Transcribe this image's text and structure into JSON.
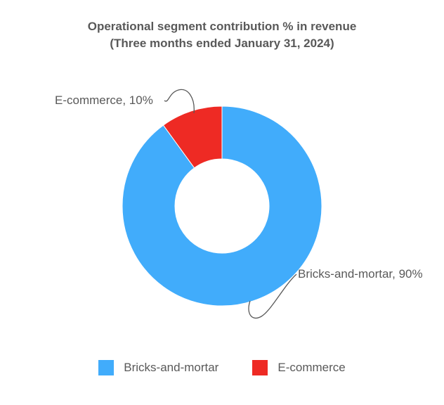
{
  "chart_data": {
    "type": "pie",
    "variant": "donut",
    "title": "Operational segment contribution % in revenue",
    "subtitle": "(Three months ended January 31, 2024)",
    "series": [
      {
        "name": "Bricks-and-mortar",
        "value": 90,
        "label": "Bricks-and-mortar, 90%",
        "color": "#41ACFB"
      },
      {
        "name": "E-commerce",
        "value": 10,
        "label": "E-commerce, 10%",
        "color": "#EE2A24"
      }
    ],
    "legend": {
      "position": "bottom"
    }
  }
}
